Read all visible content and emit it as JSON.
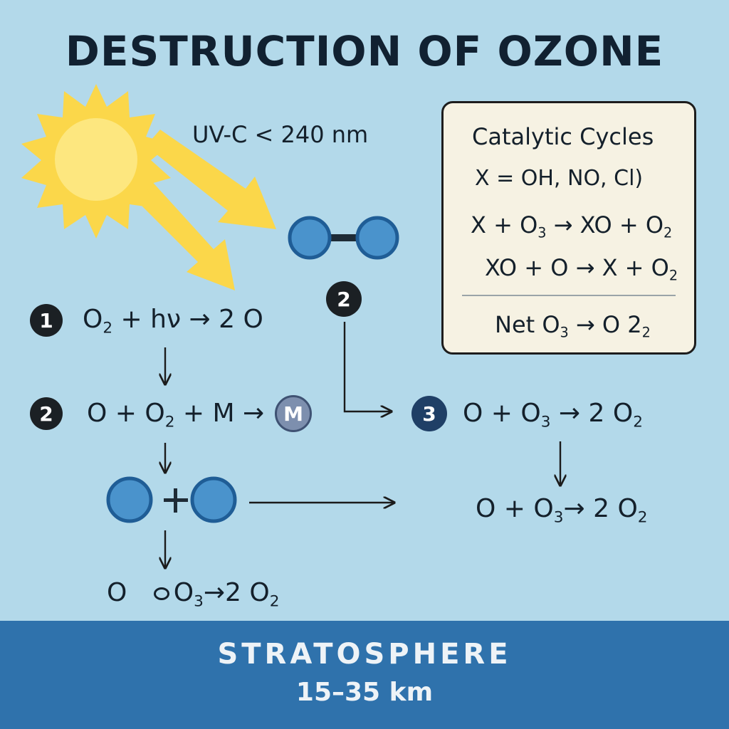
{
  "title": "DESTRUCTION OF OZONE",
  "uv_label": "UV-C < 240 nm",
  "steps": {
    "step1": {
      "badge": "1",
      "lhs": "O",
      "lhs_sub": "2",
      "rest": " + hν → 2 O"
    },
    "step2": {
      "badge": "2",
      "part1": "O + O",
      "part1_sub": "2",
      "part2": " + M →",
      "m_label": "M"
    },
    "step2_top_badge": "2",
    "step3": {
      "badge": "3",
      "part1": "O + O",
      "sub1": "3",
      "part2": " → 2 O",
      "sub2": "2"
    },
    "right_eq": {
      "part1": "O + O",
      "sub1": "3",
      "part2": "→ 2 O",
      "sub2": "2"
    },
    "bottom_eq": {
      "part1": "O",
      "part2": "O",
      "sub1": "3",
      "part3": "→2 O",
      "sub2": "2"
    }
  },
  "catalytic": {
    "heading": "Catalytic Cycles",
    "def": "X = OH, NO, Cl)",
    "r1": {
      "a": "X + O",
      "a_sub": "3",
      "b": " → XO + O",
      "b_sub": "2"
    },
    "r2": {
      "a": "XO + O → X + O",
      "a_sub": "2"
    },
    "net": {
      "a": "Net  O",
      "a_sub": "3",
      "b": " → O 2",
      "b_sub": "2"
    }
  },
  "footer": {
    "title": "STRATOSPHERE",
    "altitude": "15–35 km"
  },
  "colors": {
    "background": "#b3d9ea",
    "sun": "#fbd74a",
    "molecule": "#4a93cc",
    "footer": "#2f72ac"
  }
}
